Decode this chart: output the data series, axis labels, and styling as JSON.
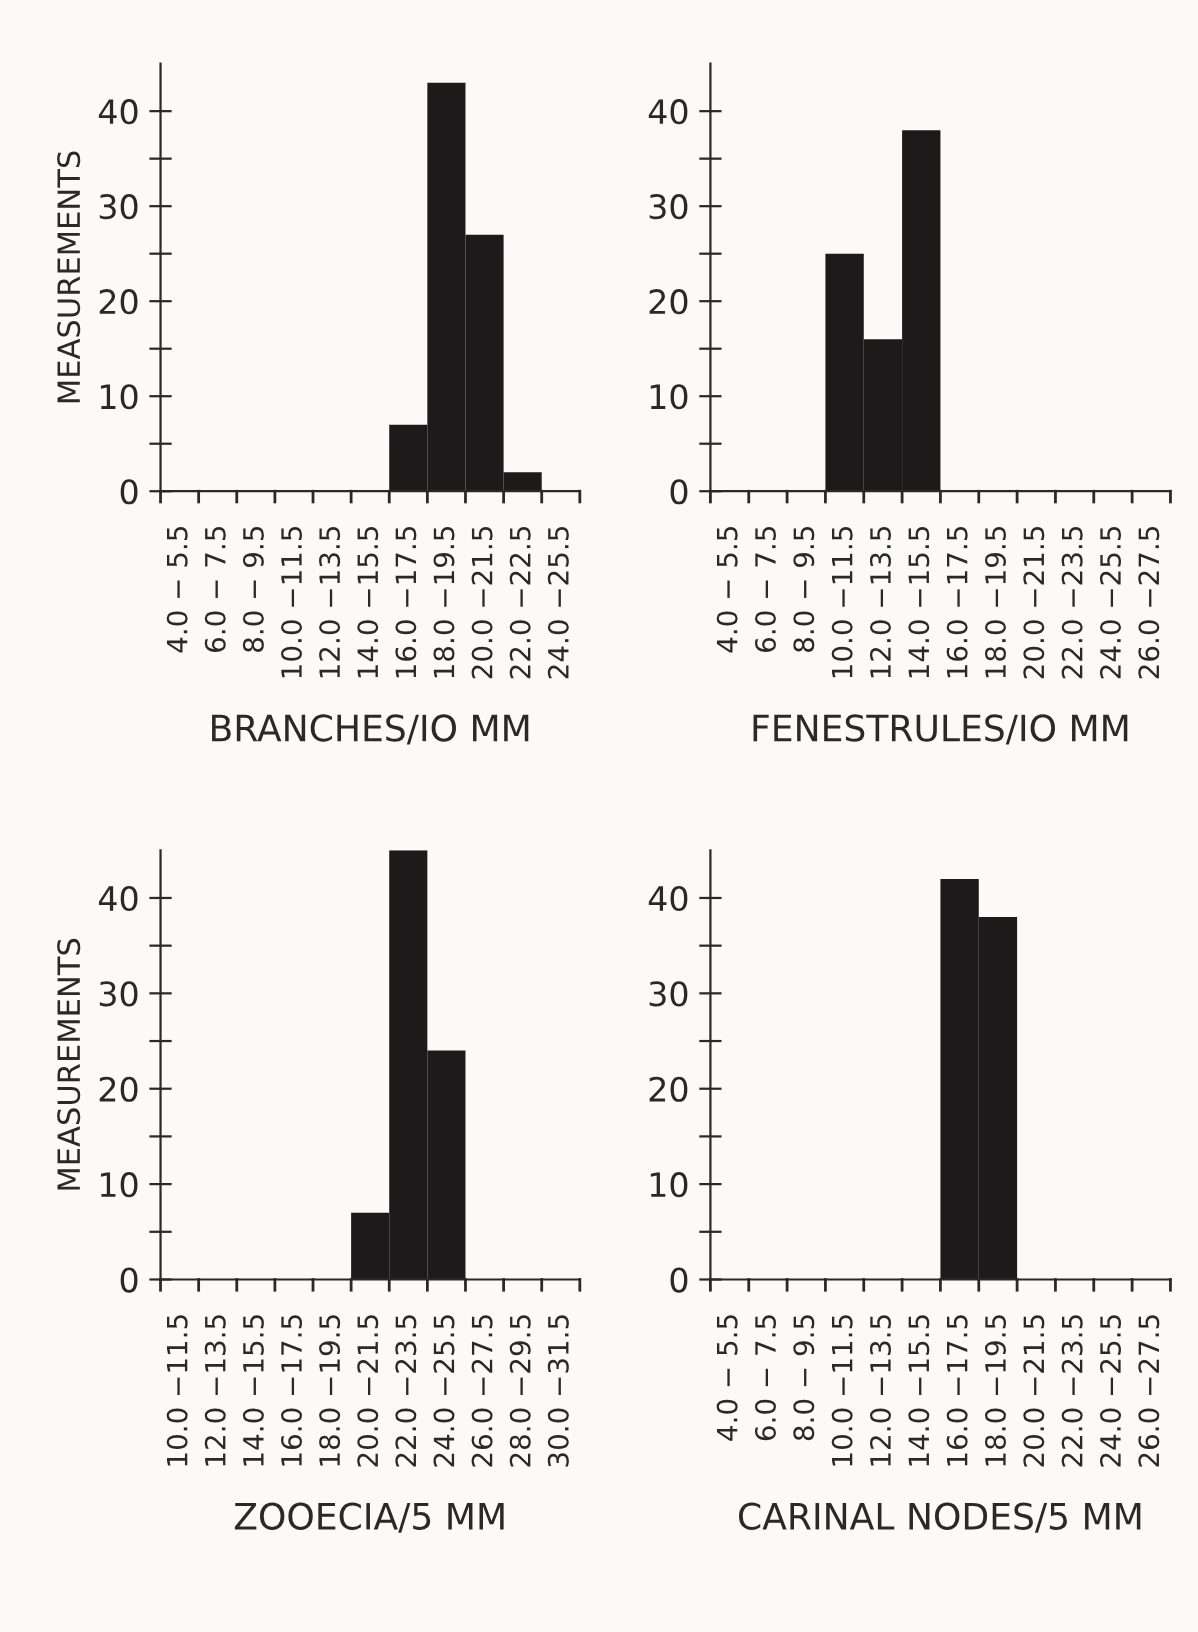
{
  "chart_data": [
    {
      "type": "bar",
      "xlabel": "BRANCHES/IO MM",
      "ylabel": "MEASUREMENTS",
      "categories": [
        "4.0 − 5.5",
        "6.0 − 7.5",
        "8.0 − 9.5",
        "10.0 −11.5",
        "12.0 −13.5",
        "14.0 −15.5",
        "16.0 −17.5",
        "18.0 −19.5",
        "20.0 −21.5",
        "22.0 −22.5",
        "24.0 −25.5"
      ],
      "values": [
        0,
        0,
        0,
        0,
        0,
        0,
        7,
        43,
        27,
        2,
        0
      ],
      "color": "#1c1a1a",
      "ylim": [
        0,
        45
      ],
      "yticks": [
        0,
        {
          "value": 5,
          "label": null
        },
        10,
        {
          "value": 15,
          "label": null
        },
        20,
        {
          "value": 25,
          "label": null
        },
        30,
        {
          "value": 35,
          "label": null
        },
        40
      ],
      "grid": false,
      "legend": false
    },
    {
      "type": "bar",
      "xlabel": "FENESTRULES/IO MM",
      "categories": [
        "4.0 − 5.5",
        "6.0 − 7.5",
        "8.0 − 9.5",
        "10.0 −11.5",
        "12.0 −13.5",
        "14.0 −15.5",
        "16.0 −17.5",
        "18.0 −19.5",
        "20.0 −21.5",
        "22.0 −23.5",
        "24.0 −25.5",
        "26.0 −27.5"
      ],
      "values": [
        0,
        0,
        0,
        25,
        16,
        38,
        0,
        0,
        0,
        0,
        0,
        0
      ],
      "color": "#1c1a1a",
      "ylim": [
        0,
        45
      ],
      "yticks": [
        0,
        {
          "value": 5,
          "label": null
        },
        10,
        {
          "value": 15,
          "label": null
        },
        20,
        {
          "value": 25,
          "label": null
        },
        30,
        {
          "value": 35,
          "label": null
        },
        40
      ],
      "grid": false,
      "legend": false
    },
    {
      "type": "bar",
      "xlabel": "ZOOECIA/5 MM",
      "ylabel": "MEASUREMENTS",
      "categories": [
        "10.0 −11.5",
        "12.0 −13.5",
        "14.0 −15.5",
        "16.0 −17.5",
        "18.0 −19.5",
        "20.0 −21.5",
        "22.0 −23.5",
        "24.0 −25.5",
        "26.0 −27.5",
        "28.0 −29.5",
        "30.0 −31.5"
      ],
      "values": [
        0,
        0,
        0,
        0,
        0,
        7,
        45,
        24,
        0,
        0,
        0
      ],
      "color": "#1c1a1a",
      "ylim": [
        0,
        45
      ],
      "yticks": [
        0,
        {
          "value": 5,
          "label": null
        },
        10,
        {
          "value": 15,
          "label": null
        },
        20,
        {
          "value": 25,
          "label": null
        },
        30,
        {
          "value": 35,
          "label": null
        },
        40
      ],
      "grid": false,
      "legend": false
    },
    {
      "type": "bar",
      "xlabel": "CARINAL NODES/5 MM",
      "categories": [
        "4.0 − 5.5",
        "6.0 − 7.5",
        "8.0 − 9.5",
        "10.0 −11.5",
        "12.0 −13.5",
        "14.0 −15.5",
        "16.0 −17.5",
        "18.0 −19.5",
        "20.0 −21.5",
        "22.0 −23.5",
        "24.0 −25.5",
        "26.0 −27.5"
      ],
      "values": [
        0,
        0,
        0,
        0,
        0,
        0,
        42,
        38,
        0,
        0,
        0,
        0
      ],
      "color": "#1c1a1a",
      "ylim": [
        0,
        45
      ],
      "yticks": [
        0,
        {
          "value": 5,
          "label": null
        },
        10,
        {
          "value": 15,
          "label": null
        },
        20,
        {
          "value": 25,
          "label": null
        },
        30,
        {
          "value": 35,
          "label": null
        },
        40
      ],
      "grid": false,
      "legend": false
    }
  ]
}
